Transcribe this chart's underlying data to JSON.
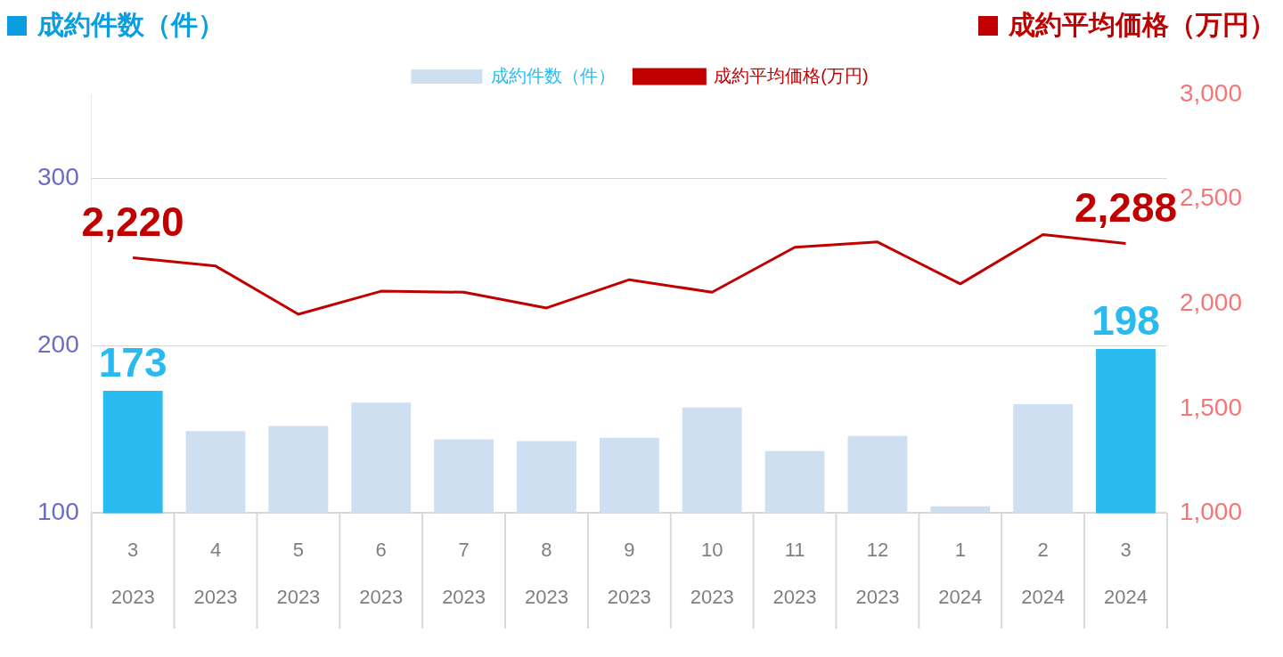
{
  "chart_data": {
    "type": "bar",
    "ylabel": "成約件数（件）",
    "y2label": "成約平均価格（万円）",
    "categories": [
      "3 2023",
      "4 2023",
      "5 2023",
      "6 2023",
      "7 2023",
      "8 2023",
      "9 2023",
      "10 2023",
      "11 2023",
      "12 2023",
      "1 2024",
      "2 2024",
      "3 2024"
    ],
    "series": [
      {
        "name": "成約件数（件）",
        "color": "#cfdff2",
        "colors": [
          "#29bbef",
          "#cfdff2",
          "#cfdff2",
          "#cfdff2",
          "#cfdff2",
          "#cfdff2",
          "#cfdff2",
          "#cfdff2",
          "#cfdff2",
          "#cfdff2",
          "#cfdff2",
          "#cfdff2",
          "#29bbef"
        ],
        "values": [
          173,
          149,
          152,
          166,
          144,
          143,
          145,
          163,
          137,
          146,
          104,
          165,
          198
        ],
        "value_labels": [
          "173",
          null,
          null,
          null,
          null,
          null,
          null,
          null,
          null,
          null,
          null,
          null,
          "198"
        ]
      },
      {
        "name": "成約平均価格(万円)",
        "type": "line",
        "axis": "y2",
        "color": "#c00000",
        "values": [
          2220,
          2180,
          1950,
          2060,
          2055,
          1980,
          2115,
          2055,
          2270,
          2295,
          2095,
          2330,
          2288
        ],
        "value_labels": [
          "2,220",
          null,
          null,
          null,
          null,
          null,
          null,
          null,
          null,
          null,
          null,
          null,
          "2,288"
        ]
      }
    ],
    "ylim": [
      100,
      350
    ],
    "yticks": [
      100,
      200,
      300
    ],
    "y2lim": [
      1000,
      3000
    ],
    "y2ticks": [
      {
        "value": 1000,
        "label": "1,000"
      },
      {
        "value": 1500,
        "label": "1,500"
      },
      {
        "value": 2000,
        "label": "2,000"
      },
      {
        "value": 2500,
        "label": "2,500"
      },
      {
        "value": 3000,
        "label": "3,000"
      }
    ],
    "grid": "y",
    "legend": "top",
    "marker": "none",
    "line_style": "solid"
  }
}
